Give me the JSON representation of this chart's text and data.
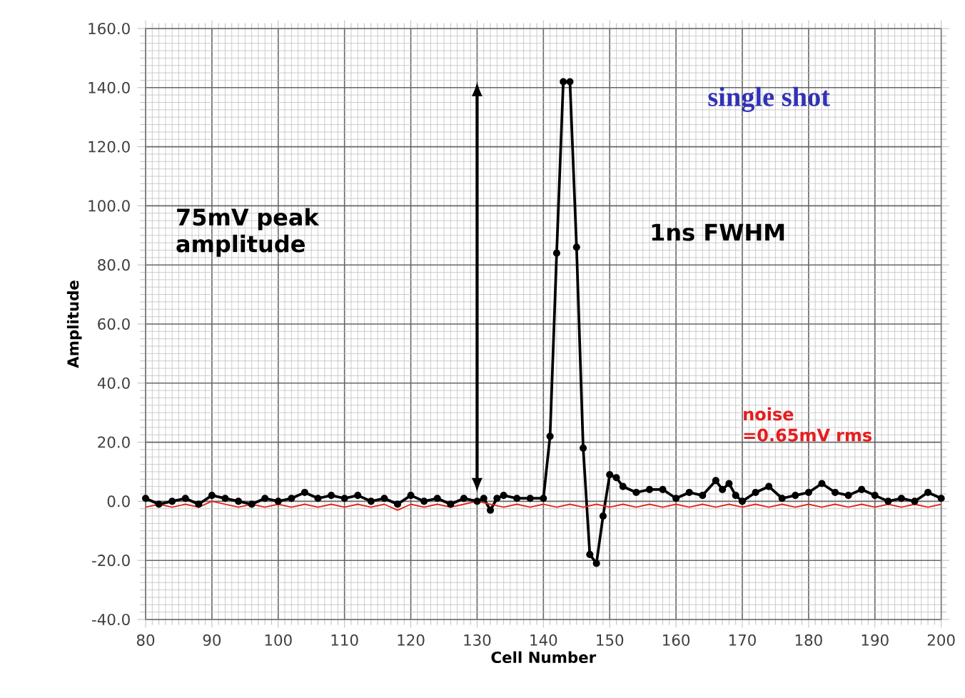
{
  "chart_data": {
    "type": "line",
    "xlabel": "Cell Number",
    "ylabel": "Amplitude",
    "xlim": [
      80,
      200
    ],
    "xticks": [
      80,
      90,
      100,
      110,
      120,
      130,
      140,
      150,
      160,
      170,
      180,
      190,
      200
    ],
    "ylim": [
      -40,
      160
    ],
    "yticks": [
      {
        "value": -40,
        "label": "-40.0"
      },
      {
        "value": -20,
        "label": "-20.0"
      },
      {
        "value": 0,
        "label": "0.0"
      },
      {
        "value": 20,
        "label": "20.0"
      },
      {
        "value": 40,
        "label": "40.0"
      },
      {
        "value": 60,
        "label": "60.0"
      },
      {
        "value": 80,
        "label": "80.0"
      },
      {
        "value": 100,
        "label": "100.0"
      },
      {
        "value": 120,
        "label": "120.0"
      },
      {
        "value": 140,
        "label": "140.0"
      },
      {
        "value": 160,
        "label": "160.0"
      }
    ],
    "grid": true,
    "line_style": "solid",
    "series": [
      {
        "color": "#000000",
        "marker": "circle",
        "x": [
          80,
          82,
          84,
          86,
          88,
          90,
          92,
          94,
          96,
          98,
          100,
          102,
          104,
          106,
          108,
          110,
          112,
          114,
          116,
          118,
          120,
          122,
          124,
          126,
          128,
          130,
          131,
          132,
          133,
          134,
          136,
          138,
          140,
          141,
          142,
          143,
          144,
          145,
          146,
          147,
          148,
          149,
          150,
          151,
          152,
          154,
          156,
          158,
          160,
          162,
          164,
          166,
          167,
          168,
          169,
          170,
          172,
          174,
          176,
          178,
          180,
          182,
          184,
          186,
          188,
          190,
          192,
          194,
          196,
          198,
          200
        ],
        "values": [
          1,
          -1,
          0,
          1,
          -1,
          2,
          1,
          0,
          -1,
          1,
          0,
          1,
          3,
          1,
          2,
          1,
          2,
          0,
          1,
          -1,
          2,
          0,
          1,
          -1,
          1,
          0,
          1,
          -3,
          1,
          2,
          1,
          1,
          1,
          22,
          84,
          142,
          142,
          86,
          18,
          -18,
          -21,
          -5,
          9,
          8,
          5,
          3,
          4,
          4,
          1,
          3,
          2,
          7,
          4,
          6,
          2,
          0,
          3,
          5,
          1,
          2,
          3,
          6,
          3,
          2,
          4,
          2,
          0,
          1,
          0,
          3,
          1
        ]
      },
      {
        "color": "#e8241c",
        "marker": "none",
        "x": [
          80,
          82,
          84,
          86,
          88,
          90,
          92,
          94,
          96,
          98,
          100,
          102,
          104,
          106,
          108,
          110,
          112,
          114,
          116,
          118,
          120,
          122,
          124,
          126,
          128,
          130,
          132,
          134,
          136,
          138,
          140,
          142,
          144,
          146,
          148,
          150,
          152,
          154,
          156,
          158,
          160,
          162,
          164,
          166,
          168,
          170,
          172,
          174,
          176,
          178,
          180,
          182,
          184,
          186,
          188,
          190,
          192,
          194,
          196,
          198,
          200
        ],
        "values": [
          -2,
          -1,
          -2,
          -1,
          -2,
          0,
          -1,
          -2,
          -1,
          -2,
          -1,
          -2,
          -1,
          -2,
          -1,
          -2,
          -1,
          -2,
          -1,
          -3,
          -1,
          -2,
          -1,
          -2,
          -1,
          0,
          -1,
          -2,
          -1,
          -2,
          -1,
          -2,
          -1,
          -2,
          -1,
          -2,
          -1,
          -2,
          -1,
          -2,
          -1,
          -2,
          -1,
          -2,
          -1,
          -2,
          -1,
          -2,
          -1,
          -2,
          -1,
          -2,
          -1,
          -2,
          -1,
          -2,
          -1,
          -2,
          -1,
          -2,
          -1
        ]
      }
    ],
    "annotations": [
      "75mV peak amplitude",
      "1ns FWHM",
      "single shot",
      "noise =0.65mV rms"
    ]
  }
}
